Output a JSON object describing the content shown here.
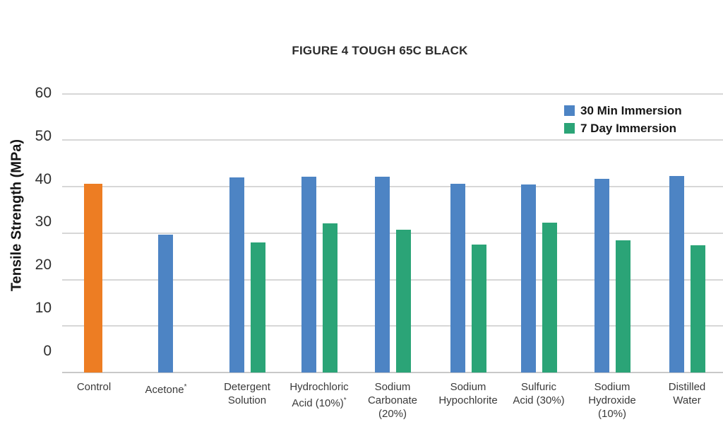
{
  "figure": {
    "title": "FIGURE 4 TOUGH 65C BLACK"
  },
  "chart_data": {
    "type": "bar",
    "title": "FIGURE 4 TOUGH 65C BLACK",
    "ylabel": "Tensile Strength (MPa)",
    "xlabel": "",
    "units": "MPa",
    "ylim": [
      0,
      60
    ],
    "ytick_interval": 10,
    "yticks": [
      60,
      50,
      40,
      30,
      20,
      10,
      0
    ],
    "grid": true,
    "legend_position": "top-right",
    "categories": [
      "Control",
      "Acetone*",
      "Detergent Solution",
      "Hydrochloric Acid (10%)*",
      "Sodium Carbonate (20%)",
      "Sodium Hypochlorite",
      "Sulfuric Acid (30%)",
      "Sodium Hydroxide (10%)",
      "Distilled Water"
    ],
    "category_label_lines": [
      [
        "Control"
      ],
      [
        "Acetone*"
      ],
      [
        "Detergent",
        "Solution"
      ],
      [
        "Hydrochloric",
        "Acid (10%)*"
      ],
      [
        "Sodium",
        "Carbonate",
        "(20%)"
      ],
      [
        "Sodium",
        "Hypochlorite"
      ],
      [
        "Sulfuric",
        "Acid (30%)"
      ],
      [
        "Sodium",
        "Hydroxide",
        "(10%)"
      ],
      [
        "Distilled",
        "Water"
      ]
    ],
    "series": [
      {
        "name": "Control",
        "color": "#ed7d23",
        "in_legend": false,
        "values": [
          40.7,
          null,
          null,
          null,
          null,
          null,
          null,
          null,
          null
        ]
      },
      {
        "name": "30 Min Immersion",
        "color": "#4d84c4",
        "in_legend": true,
        "values": [
          null,
          29.7,
          42.0,
          42.1,
          42.2,
          40.6,
          40.5,
          41.7,
          42.3
        ]
      },
      {
        "name": "7 Day Immersion",
        "color": "#2ba477",
        "in_legend": true,
        "values": [
          null,
          null,
          28.0,
          32.1,
          30.7,
          27.6,
          32.2,
          28.5,
          27.4
        ]
      }
    ]
  }
}
